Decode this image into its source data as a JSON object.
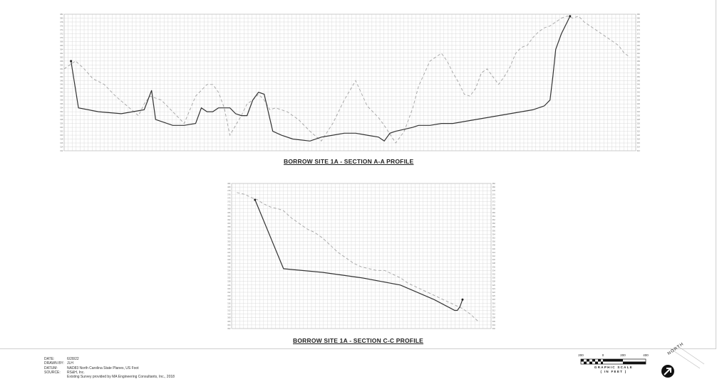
{
  "sheet": {
    "date_label": "DATE:",
    "date": "6/28/22",
    "drawn_by_label": "DRAWN BY:",
    "drawn_by": "JLH",
    "datum_label": "DATUM:",
    "datum": "NAD83 North Carolina State Planes, US Foot",
    "source_label": "SOURCE:",
    "source_line1": "RS&H, Inc.",
    "source_line2": "Existing Survey provided by MA Engineering Consultants, Inc., 2018"
  },
  "graphic_scale": {
    "labels": [
      "200",
      "0",
      "200",
      "400"
    ],
    "title": "GRAPHIC SCALE",
    "units": "( IN FEET )"
  },
  "north_arrow": {
    "label": "NORTH",
    "icon": "north-arrow-icon"
  },
  "chart_data": [
    {
      "type": "line",
      "title": "BORROW SITE 1A - SECTION A-A PROFILE",
      "xlim": [
        0,
        100
      ],
      "ylim": [
        312,
        382
      ],
      "grid": true,
      "y_tick_step": 2,
      "series": [
        {
          "style": "dashed",
          "x": [
            0,
            2,
            3.5,
            5,
            7,
            9,
            11,
            13,
            14,
            15,
            17,
            19,
            21,
            23,
            25,
            26,
            27,
            28,
            29,
            30,
            31,
            32,
            33,
            34,
            35,
            36,
            37,
            38,
            39,
            40,
            41,
            43,
            45,
            47,
            49,
            51,
            53,
            55,
            56,
            58,
            59.5,
            61,
            62,
            64,
            66,
            67,
            68,
            69,
            70,
            71,
            72,
            73,
            74,
            75,
            76,
            77,
            78,
            79,
            80,
            81,
            82,
            83,
            84,
            85,
            86,
            87,
            88,
            89,
            90,
            91,
            92,
            93,
            94,
            95,
            96,
            97,
            98,
            99
          ],
          "y": [
            354,
            358,
            354,
            349,
            346,
            340,
            335,
            330,
            336,
            340,
            338,
            332,
            326,
            340,
            346,
            346,
            342,
            334,
            320,
            325,
            330,
            336,
            338,
            341,
            338,
            333,
            334,
            333,
            332,
            330,
            328,
            322,
            317,
            326,
            338,
            348,
            335,
            329,
            325,
            316,
            322,
            334,
            345,
            358,
            362,
            358,
            352,
            347,
            341,
            340,
            344,
            352,
            354,
            350,
            346,
            350,
            355,
            362,
            365,
            366,
            370,
            373,
            375,
            376,
            378,
            380,
            381,
            380,
            381,
            378,
            376,
            374,
            372,
            370,
            368,
            366,
            362,
            360
          ]
        },
        {
          "style": "solid",
          "x": [
            1.2,
            2.5,
            6,
            10,
            14,
            15.3,
            16,
            19,
            21,
            23,
            24,
            25,
            26,
            27,
            29,
            30,
            31,
            32,
            33,
            34,
            35,
            36.5,
            38,
            40,
            43,
            45,
            47,
            49,
            51,
            53,
            55,
            56,
            57,
            58,
            59.5,
            61,
            62,
            64,
            66,
            68,
            70,
            72,
            74,
            76,
            78,
            80,
            82,
            84,
            85,
            85.5,
            86,
            87,
            88,
            88.5
          ],
          "y": [
            358,
            334,
            332,
            331,
            333,
            343,
            328,
            325,
            325,
            326,
            334,
            332,
            332,
            334,
            334,
            331,
            330,
            330,
            338,
            342,
            341,
            322,
            320,
            318,
            317,
            319,
            320,
            321,
            321,
            320,
            319,
            317,
            321,
            322,
            323,
            324,
            325,
            325,
            326,
            326,
            327,
            328,
            329,
            330,
            331,
            332,
            333,
            335,
            338,
            350,
            364,
            372,
            378,
            381
          ]
        }
      ]
    },
    {
      "type": "line",
      "title": "BORROW SITE 1A - SECTION C-C PROFILE",
      "xlim": [
        0,
        100
      ],
      "ylim": [
        302,
        382
      ],
      "grid": true,
      "y_tick_step": 2,
      "series": [
        {
          "style": "dashed",
          "x": [
            2,
            5,
            8,
            10,
            12,
            15,
            18,
            20,
            23,
            26,
            29,
            32,
            35,
            38,
            41,
            44,
            47,
            50,
            53,
            56,
            59,
            62,
            65,
            68,
            71,
            74,
            77,
            80,
            83,
            86,
            89,
            92,
            95
          ],
          "y": [
            377,
            376,
            374,
            373,
            371,
            369,
            368,
            367,
            363,
            360,
            357,
            355,
            352,
            348,
            344,
            341,
            338,
            336,
            335,
            334,
            334,
            332,
            330,
            327,
            325,
            323,
            321,
            319,
            317,
            315,
            313,
            310,
            306
          ]
        },
        {
          "style": "solid",
          "x": [
            9,
            20,
            35,
            50,
            65,
            78,
            86,
            87,
            88,
            89
          ],
          "y": [
            373,
            335,
            333,
            330,
            326,
            318,
            312,
            312,
            314,
            318
          ]
        }
      ]
    }
  ]
}
